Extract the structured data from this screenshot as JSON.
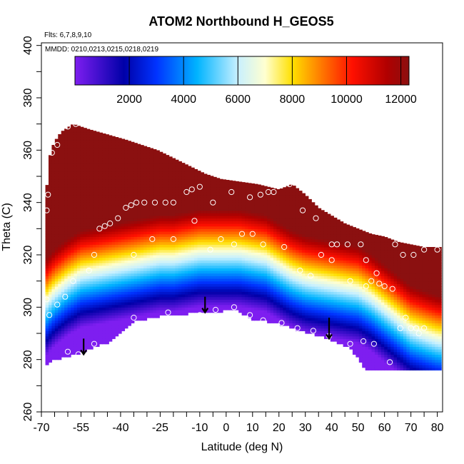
{
  "chart_data": {
    "type": "heatmap",
    "title": "ATOM2 Northbound H_GEOS5",
    "flights_label": "Flts: 6,7,8,9,10",
    "dates_label": "MMDD: 0210,0213,0215,0218,0219",
    "xlabel": "Latitude (deg N)",
    "ylabel": "Theta (C)",
    "xlim": [
      -70,
      82
    ],
    "ylim": [
      260,
      401
    ],
    "x_ticks": [
      "-70",
      "-55",
      "-40",
      "-25",
      "-10",
      "0",
      "10",
      "20",
      "30",
      "40",
      "50",
      "60",
      "70",
      "80"
    ],
    "x_tick_values": [
      -70,
      -55,
      -40,
      -25,
      -10,
      0,
      10,
      20,
      30,
      40,
      50,
      60,
      70,
      80
    ],
    "y_ticks": [
      "260",
      "280",
      "300",
      "320",
      "340",
      "360",
      "380",
      "400"
    ],
    "y_tick_values": [
      260,
      280,
      300,
      320,
      340,
      360,
      380,
      400
    ],
    "colorbar": {
      "range": [
        0,
        12300
      ],
      "ticks": [
        "2000",
        "4000",
        "6000",
        "8000",
        "10000",
        "12000"
      ],
      "tick_values": [
        2000,
        4000,
        6000,
        8000,
        10000,
        12000
      ],
      "colors": [
        "#7e1ef0",
        "#0000a8",
        "#0033ff",
        "#00b4ff",
        "#c8f0ff",
        "#ffffd0",
        "#ffe000",
        "#ff8000",
        "#ff1000",
        "#b00000",
        "#8b1010"
      ],
      "color_stops": [
        0,
        1800,
        3000,
        4500,
        6000,
        7000,
        8000,
        9000,
        10200,
        11500,
        12300
      ]
    },
    "field": {
      "top_boundary": [
        [
          -68.5,
          341
        ],
        [
          -66.5,
          360
        ],
        [
          -64.5,
          364
        ],
        [
          -62.5,
          367
        ],
        [
          -58,
          370
        ],
        [
          -52,
          368
        ],
        [
          -45,
          366
        ],
        [
          -38,
          364
        ],
        [
          -32,
          362
        ],
        [
          -26,
          360
        ],
        [
          -20,
          357
        ],
        [
          -14,
          354
        ],
        [
          -8,
          351
        ],
        [
          -2,
          349
        ],
        [
          5,
          348
        ],
        [
          12,
          347
        ],
        [
          20,
          345
        ],
        [
          25,
          347
        ],
        [
          30,
          343
        ],
        [
          35,
          338
        ],
        [
          40,
          335
        ],
        [
          45,
          332
        ],
        [
          50,
          330
        ],
        [
          55,
          328
        ],
        [
          60,
          327
        ],
        [
          65,
          325
        ],
        [
          70,
          324
        ],
        [
          75,
          323
        ],
        [
          80.5,
          323
        ]
      ],
      "bottom_boundary": [
        [
          -68.5,
          278
        ],
        [
          -66,
          280
        ],
        [
          -55,
          283
        ],
        [
          -45,
          287
        ],
        [
          -35,
          295
        ],
        [
          -25,
          297
        ],
        [
          -15,
          298
        ],
        [
          -5,
          298
        ],
        [
          3,
          300
        ],
        [
          10,
          296
        ],
        [
          20,
          294
        ],
        [
          30,
          291
        ],
        [
          40,
          288
        ],
        [
          47,
          285
        ],
        [
          50,
          281
        ],
        [
          53,
          276
        ],
        [
          60,
          276
        ],
        [
          70,
          276
        ],
        [
          80.5,
          276
        ]
      ],
      "profile_points": [
        [
          -68.5,
          300
        ],
        [
          -65,
          304
        ],
        [
          -60,
          308
        ],
        [
          -55,
          311
        ],
        [
          -50,
          312
        ],
        [
          -45,
          313
        ],
        [
          -40,
          314
        ],
        [
          -35,
          315
        ],
        [
          -30,
          316
        ],
        [
          -25,
          317
        ],
        [
          -20,
          317
        ],
        [
          -15,
          318
        ],
        [
          -10,
          319
        ],
        [
          -5,
          319
        ],
        [
          0,
          319
        ],
        [
          5,
          319
        ],
        [
          10,
          318
        ],
        [
          15,
          317
        ],
        [
          20,
          314
        ],
        [
          25,
          311
        ],
        [
          30,
          309
        ],
        [
          35,
          308
        ],
        [
          40,
          307
        ],
        [
          45,
          306
        ],
        [
          50,
          305
        ],
        [
          55,
          302
        ],
        [
          60,
          298
        ],
        [
          65,
          294
        ],
        [
          70,
          290
        ],
        [
          75,
          288
        ],
        [
          80.5,
          286
        ]
      ]
    },
    "flight_points": [
      [
        -68,
        337
      ],
      [
        -67.5,
        343
      ],
      [
        -66,
        359
      ],
      [
        -64,
        362
      ],
      [
        -60,
        369
      ],
      [
        -57,
        370
      ],
      [
        -48,
        330
      ],
      [
        -46,
        331
      ],
      [
        -44,
        332
      ],
      [
        -41,
        334
      ],
      [
        -38,
        338
      ],
      [
        -36,
        339
      ],
      [
        -34,
        340
      ],
      [
        -31,
        340
      ],
      [
        -27,
        340
      ],
      [
        -23,
        340
      ],
      [
        -20,
        340
      ],
      [
        -15,
        344
      ],
      [
        -13,
        345
      ],
      [
        -10,
        346
      ],
      [
        -5,
        340
      ],
      [
        2,
        344
      ],
      [
        9,
        342
      ],
      [
        13,
        343
      ],
      [
        16,
        344
      ],
      [
        18,
        344
      ],
      [
        24,
        347
      ],
      [
        29,
        337
      ],
      [
        34,
        334
      ],
      [
        36,
        320
      ],
      [
        40,
        324
      ],
      [
        42,
        324
      ],
      [
        46,
        324
      ],
      [
        51,
        324
      ],
      [
        53,
        318
      ],
      [
        55,
        310
      ],
      [
        57,
        313
      ],
      [
        60,
        308
      ],
      [
        64,
        324
      ],
      [
        67,
        320
      ],
      [
        71,
        320
      ],
      [
        75,
        322
      ],
      [
        80,
        322
      ],
      [
        -68,
        303
      ],
      [
        -67,
        297
      ],
      [
        -64,
        301
      ],
      [
        -61,
        304
      ],
      [
        -58,
        310
      ],
      [
        -52,
        314
      ],
      [
        -50,
        320
      ],
      [
        -35,
        320
      ],
      [
        -28,
        326
      ],
      [
        -20,
        326
      ],
      [
        -12,
        333
      ],
      [
        -6,
        322
      ],
      [
        -2,
        326
      ],
      [
        3,
        324
      ],
      [
        6,
        328
      ],
      [
        10,
        328
      ],
      [
        14,
        324
      ],
      [
        22,
        323
      ],
      [
        28,
        314
      ],
      [
        32,
        312
      ],
      [
        40,
        318
      ],
      [
        47,
        310
      ],
      [
        53,
        308
      ],
      [
        58,
        309
      ],
      [
        63,
        307
      ],
      [
        68,
        296
      ],
      [
        72,
        292
      ],
      [
        73,
        290
      ],
      [
        -60,
        283
      ],
      [
        -56,
        282
      ],
      [
        -50,
        286
      ],
      [
        -42,
        286
      ],
      [
        -35,
        296
      ],
      [
        -22,
        298
      ],
      [
        -10,
        297
      ],
      [
        -4,
        299
      ],
      [
        3,
        300
      ],
      [
        9,
        297
      ],
      [
        14,
        295
      ],
      [
        21,
        294
      ],
      [
        27,
        292
      ],
      [
        33,
        291
      ],
      [
        39,
        289
      ],
      [
        47,
        286
      ],
      [
        52,
        287
      ],
      [
        56,
        286
      ],
      [
        62,
        279
      ],
      [
        66,
        292
      ],
      [
        70,
        292
      ],
      [
        75,
        292
      ]
    ],
    "arrows": [
      [
        -54,
        288,
        282
      ],
      [
        -8,
        304,
        298
      ],
      [
        39,
        296,
        288
      ]
    ]
  }
}
